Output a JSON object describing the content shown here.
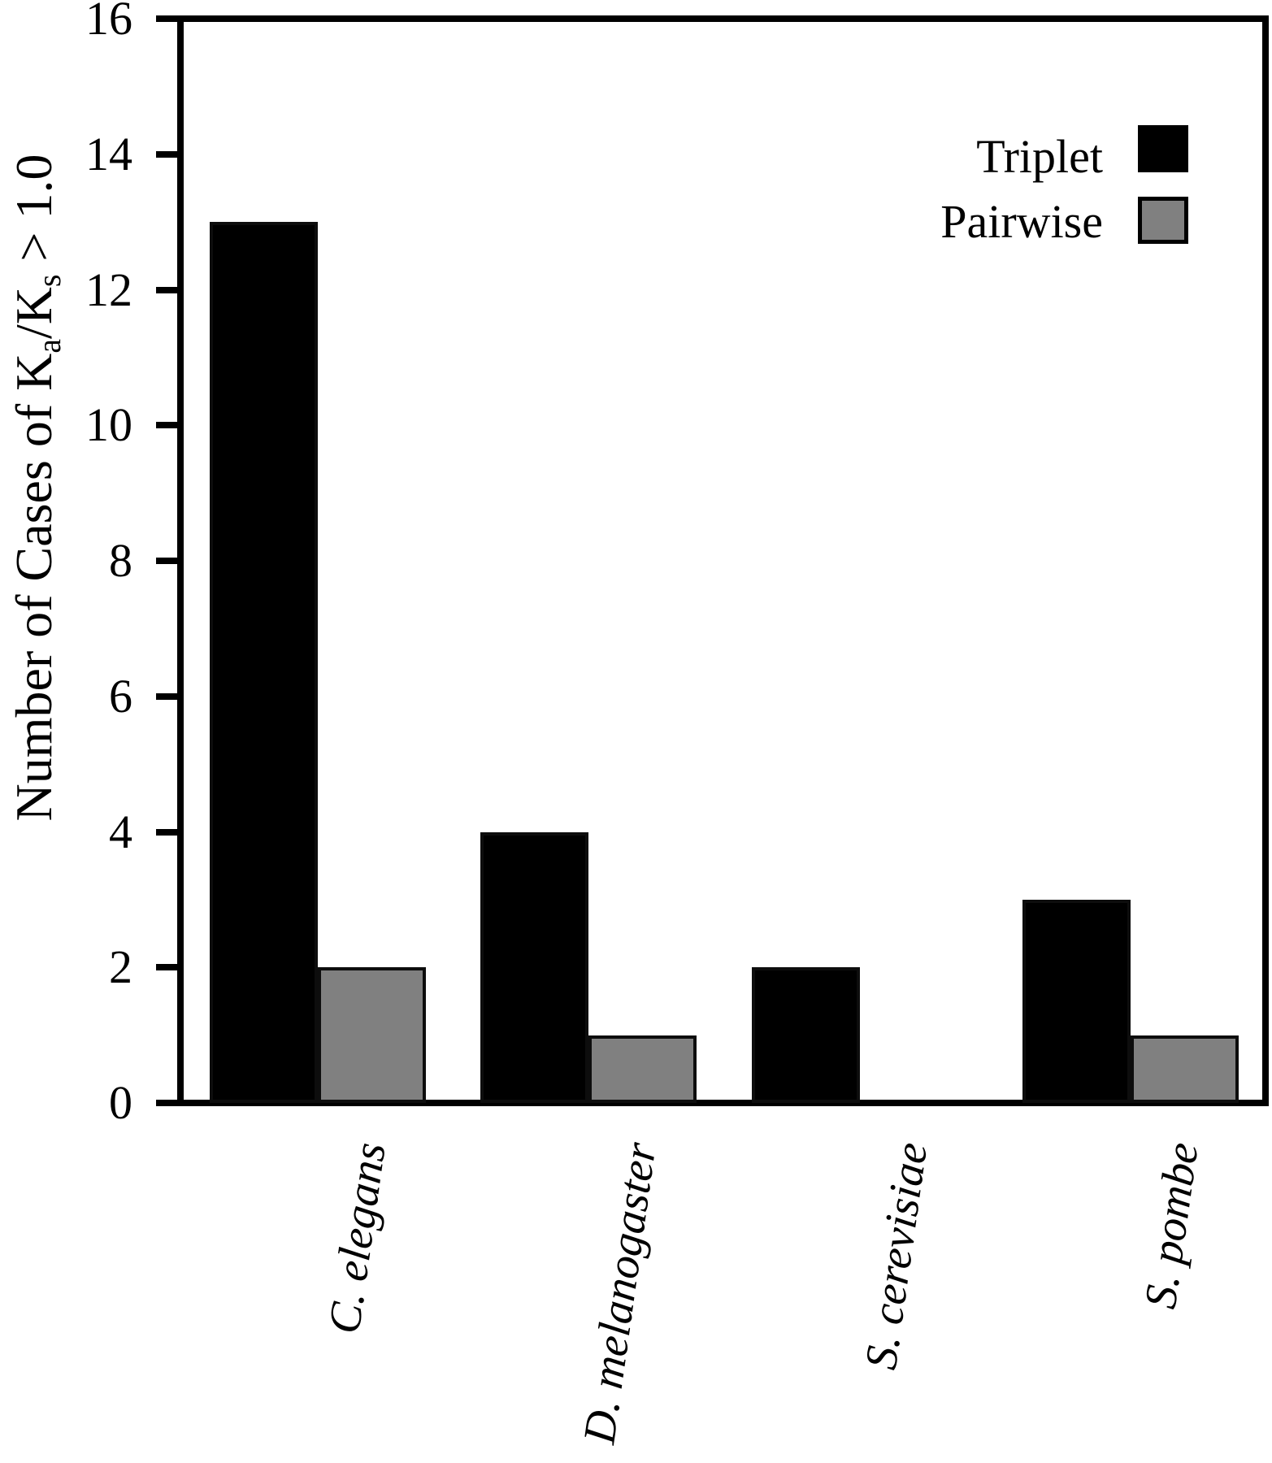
{
  "chart_data": {
    "type": "bar",
    "title": "",
    "categories": [
      "C. elegans",
      "D. melanogaster",
      "S. cerevisiae",
      "S. pombe"
    ],
    "series": [
      {
        "name": "Triplet",
        "color": "#000000",
        "values": [
          13,
          4,
          2,
          3
        ]
      },
      {
        "name": "Pairwise",
        "color": "#808080",
        "values": [
          2,
          1,
          0,
          1
        ]
      }
    ],
    "ylabel_plain": "Number of Cases of Ka/Ks > 1.0",
    "ylabel_parts": [
      {
        "t": "Number of Cases of K"
      },
      {
        "t": "a",
        "sub": true
      },
      {
        "t": "/K"
      },
      {
        "t": "s",
        "sub": true
      },
      {
        "t": " > 1.0"
      }
    ],
    "xlabel": "",
    "ylim": [
      0,
      16
    ],
    "ytick_step": 2,
    "yticks": [
      0,
      2,
      4,
      6,
      8,
      10,
      12,
      14,
      16
    ],
    "grid": false,
    "legend_position": "top-right",
    "category_label_style": "italic",
    "bar_outline_color": "#000000",
    "background_color": "#ffffff"
  }
}
